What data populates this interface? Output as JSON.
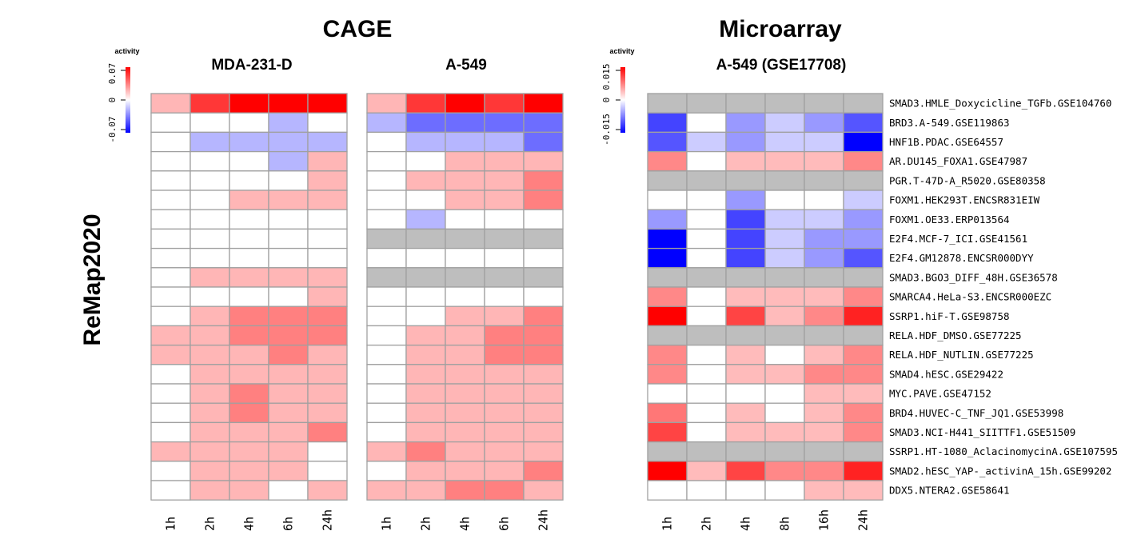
{
  "chart_data": {
    "type": "heatmap",
    "row_axis_label": "ReMap2020",
    "rows": [
      "SMAD3.HMLE_Doxycicline_TGFb.GSE104760",
      "BRD3.A-549.GSE119863",
      "HNF1B.PDAC.GSE64557",
      "AR.DU145_FOXA1.GSE47987",
      "PGR.T-47D-A_R5020.GSE80358",
      "FOXM1.HEK293T.ENCSR831EIW",
      "FOXM1.OE33.ERP013564",
      "E2F4.MCF-7_ICI.GSE41561",
      "E2F4.GM12878.ENCSR000DYY",
      "SMAD3.BGO3_DIFF_48H.GSE36578",
      "SMARCA4.HeLa-S3.ENCSR000EZC",
      "SSRP1.hiF-T.GSE98758",
      "RELA.HDF_DMSO.GSE77225",
      "RELA.HDF_NUTLIN.GSE77225",
      "SMAD4.hESC.GSE29422",
      "MYC.PAVE.GSE47152",
      "BRD4.HUVEC-C_TNF_JQ1.GSE53998",
      "SMAD3.NCI-H441_SIITTF1.GSE51509",
      "SSRP1.HT-1080_AclacinomycinA.GSE107595",
      "SMAD2.hESC_YAP-_activinA_15h.GSE99202",
      "DDX5.NTERA2.GSE58641"
    ],
    "groups": [
      {
        "title": "CAGE",
        "legend": {
          "label": "activity",
          "ticks": [
            "0.07",
            "0",
            "-0.07"
          ],
          "min": -0.07,
          "max": 0.07
        },
        "panels": [
          {
            "title": "MDA-231-D",
            "columns": [
              "1h",
              "2h",
              "4h",
              "6h",
              "24h"
            ],
            "values": [
              [
                0.02,
                0.055,
                0.07,
                0.07,
                0.07
              ],
              [
                0,
                0,
                0,
                -0.02,
                0
              ],
              [
                0,
                -0.02,
                -0.02,
                -0.02,
                -0.02
              ],
              [
                0,
                0,
                0,
                -0.02,
                0.02
              ],
              [
                0,
                0,
                0,
                0,
                0.02
              ],
              [
                0,
                0,
                0.02,
                0.02,
                0.02
              ],
              [
                0,
                0,
                0,
                0,
                0
              ],
              [
                0,
                0,
                0,
                0,
                0
              ],
              [
                0,
                0,
                0,
                0,
                0
              ],
              [
                0,
                0.02,
                0.02,
                0.02,
                0.02
              ],
              [
                0,
                0,
                0,
                0,
                0.02
              ],
              [
                0,
                0.02,
                0.035,
                0.035,
                0.035
              ],
              [
                0.02,
                0.02,
                0.035,
                0.035,
                0.035
              ],
              [
                0.02,
                0.02,
                0.02,
                0.035,
                0.02
              ],
              [
                0,
                0.02,
                0.02,
                0.02,
                0.02
              ],
              [
                0,
                0.02,
                0.035,
                0.02,
                0.02
              ],
              [
                0,
                0.02,
                0.035,
                0.02,
                0.02
              ],
              [
                0,
                0.02,
                0.02,
                0.02,
                0.035
              ],
              [
                0.02,
                0.02,
                0.02,
                0.02,
                0
              ],
              [
                0,
                0.02,
                0.02,
                0.02,
                0
              ],
              [
                0,
                0.02,
                0.02,
                0,
                0.02
              ]
            ]
          },
          {
            "title": "A-549",
            "columns": [
              "1h",
              "2h",
              "4h",
              "6h",
              "24h"
            ],
            "values": [
              [
                0.02,
                0.055,
                0.07,
                0.055,
                0.07
              ],
              [
                -0.02,
                -0.04,
                -0.04,
                -0.04,
                -0.04
              ],
              [
                0,
                -0.02,
                -0.02,
                -0.02,
                -0.04
              ],
              [
                0,
                0,
                0.02,
                0.02,
                0.02
              ],
              [
                0,
                0.02,
                0.02,
                0.02,
                0.035
              ],
              [
                0,
                0,
                0.02,
                0.02,
                0.035
              ],
              [
                0,
                -0.02,
                0,
                0,
                0
              ],
              [
                null,
                null,
                null,
                null,
                null
              ],
              [
                0,
                0,
                0,
                0,
                0
              ],
              [
                null,
                null,
                null,
                null,
                null
              ],
              [
                0,
                0,
                0,
                0,
                0
              ],
              [
                0,
                0,
                0.02,
                0.02,
                0.035
              ],
              [
                0,
                0.02,
                0.02,
                0.035,
                0.035
              ],
              [
                0,
                0.02,
                0.02,
                0.035,
                0.035
              ],
              [
                0,
                0.02,
                0.02,
                0.02,
                0.02
              ],
              [
                0,
                0.02,
                0.02,
                0.02,
                0.02
              ],
              [
                0,
                0.02,
                0.02,
                0.02,
                0.02
              ],
              [
                0,
                0.02,
                0.02,
                0.02,
                0.02
              ],
              [
                0.02,
                0.035,
                0.02,
                0.02,
                0.02
              ],
              [
                0,
                0.02,
                0.02,
                0.02,
                0.035
              ],
              [
                0.02,
                0.02,
                0.035,
                0.035,
                0.02
              ]
            ]
          }
        ]
      },
      {
        "title": "Microarray",
        "legend": {
          "label": "activity",
          "ticks": [
            "0.015",
            "0",
            "-0.015"
          ],
          "min": -0.015,
          "max": 0.015
        },
        "panels": [
          {
            "title": "A-549 (GSE17708)",
            "columns": [
              "1h",
              "2h",
              "4h",
              "8h",
              "16h",
              "24h"
            ],
            "values": [
              [
                null,
                null,
                null,
                null,
                null,
                null
              ],
              [
                -0.011,
                0,
                -0.006,
                -0.003,
                -0.006,
                -0.01
              ],
              [
                -0.01,
                -0.003,
                -0.006,
                -0.003,
                -0.003,
                -0.015
              ],
              [
                0.007,
                0,
                0.004,
                0.004,
                0.004,
                0.007
              ],
              [
                null,
                null,
                null,
                null,
                null,
                null
              ],
              [
                0,
                0,
                -0.006,
                0,
                0,
                -0.003
              ],
              [
                -0.006,
                0,
                -0.011,
                -0.003,
                -0.003,
                -0.006
              ],
              [
                -0.015,
                0,
                -0.011,
                -0.003,
                -0.006,
                -0.006
              ],
              [
                -0.015,
                0,
                -0.011,
                -0.003,
                -0.006,
                -0.01
              ],
              [
                null,
                null,
                null,
                null,
                null,
                null
              ],
              [
                0.007,
                0,
                0.004,
                0.004,
                0.004,
                0.007
              ],
              [
                0.015,
                0,
                0.011,
                0.004,
                0.007,
                0.013
              ],
              [
                null,
                null,
                null,
                null,
                null,
                null
              ],
              [
                0.007,
                0,
                0.004,
                0,
                0.004,
                0.007
              ],
              [
                0.007,
                0,
                0.004,
                0.004,
                0.007,
                0.007
              ],
              [
                0,
                0,
                0,
                0,
                0.004,
                0.004
              ],
              [
                0.008,
                0,
                0.004,
                0,
                0.004,
                0.007
              ],
              [
                0.011,
                0,
                0.004,
                0.004,
                0.004,
                0.007
              ],
              [
                null,
                null,
                null,
                null,
                null,
                null
              ],
              [
                0.015,
                0.004,
                0.011,
                0.007,
                0.007,
                0.013
              ],
              [
                0,
                0,
                0,
                0,
                0.004,
                0.004
              ]
            ]
          }
        ]
      }
    ],
    "colors": {
      "high": "#ff0000",
      "zero": "#ffffff",
      "low": "#0000ff",
      "missing": "#bebebe",
      "grid": "#a0a0a0"
    }
  }
}
